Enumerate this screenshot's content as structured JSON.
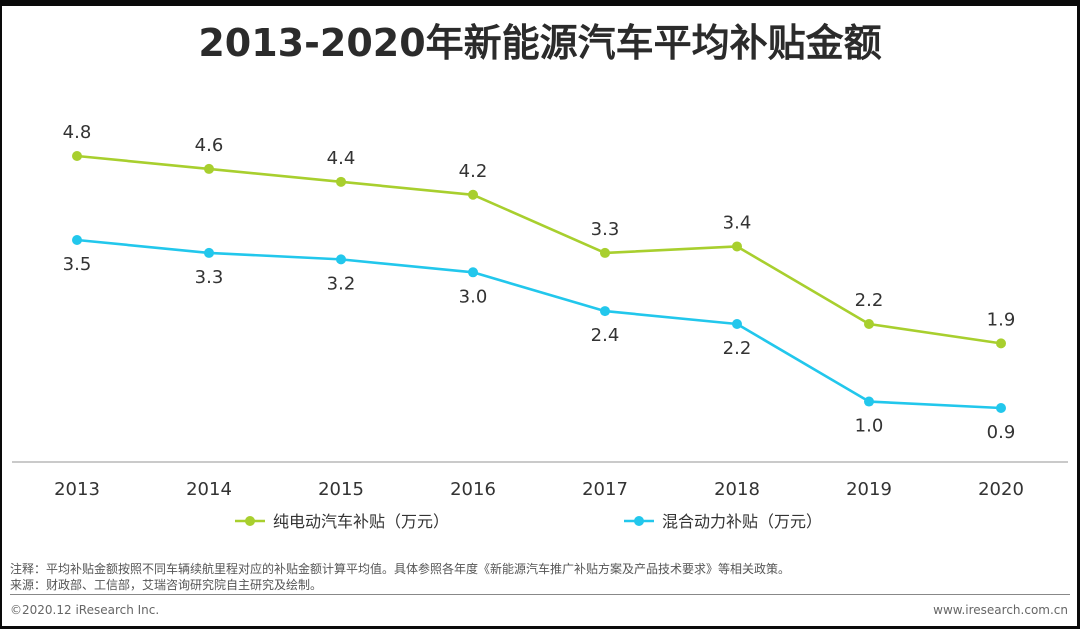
{
  "title": "2013-2020年新能源汽车平均补贴金额",
  "colors": {
    "series_ev": "#a8cf2e",
    "series_hybrid": "#22c7ec",
    "axis": "#aaaaaa",
    "text": "#333333"
  },
  "chart_data": {
    "type": "line",
    "title": "2013-2020年新能源汽车平均补贴金额",
    "categories": [
      "2013",
      "2014",
      "2015",
      "2016",
      "2017",
      "2018",
      "2019",
      "2020"
    ],
    "series": [
      {
        "name": "纯电动汽车补贴（万元）",
        "values": [
          4.8,
          4.6,
          4.4,
          4.2,
          3.3,
          3.4,
          2.2,
          1.9
        ],
        "label_position": "above"
      },
      {
        "name": "混合动力补贴（万元）",
        "values": [
          3.5,
          3.3,
          3.2,
          3.0,
          2.4,
          2.2,
          1.0,
          0.9
        ],
        "label_position": "below"
      }
    ],
    "xlabel": "",
    "ylabel": "",
    "legend": "bottom-center",
    "grid": false
  },
  "notes": {
    "note_line": "注释：平均补贴金额按照不同车辆续航里程对应的补贴金额计算平均值。具体参照各年度《新能源汽车推广补贴方案及产品技术要求》等相关政策。",
    "source_line": "来源：财政部、工信部，艾瑞咨询研究院自主研究及绘制。"
  },
  "footer": {
    "copyright": "©2020.12 iResearch Inc.",
    "website": "www.iresearch.com.cn"
  }
}
